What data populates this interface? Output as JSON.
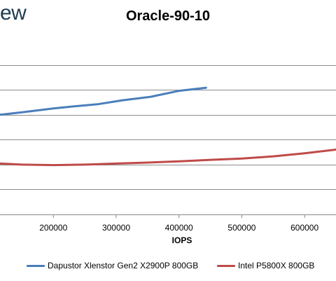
{
  "watermark": "ew",
  "chart_data": {
    "type": "line",
    "title": "Oracle-90-10",
    "xlabel": "IOPS",
    "ylabel": "",
    "x_ticks": [
      200000,
      300000,
      400000,
      500000,
      600000
    ],
    "xlim": [
      115000,
      650000
    ],
    "ylim": [
      0,
      7
    ],
    "grid": true,
    "legend_position": "bottom",
    "series": [
      {
        "name": "Dapustor Xlenstor Gen2 X2900P 800GB",
        "color": "#4a7ebb",
        "x": [
          115000,
          150000,
          200000,
          230000,
          270000,
          310000,
          355000,
          400000,
          443000
        ],
        "y": [
          4.0,
          4.1,
          4.25,
          4.33,
          4.42,
          4.58,
          4.72,
          4.96,
          5.08
        ]
      },
      {
        "name": "Intel P5800X 800GB",
        "color": "#be4b48",
        "x": [
          115000,
          150000,
          200000,
          250000,
          300000,
          350000,
          400000,
          450000,
          500000,
          550000,
          600000,
          650000
        ],
        "y": [
          2.04,
          2.0,
          1.98,
          2.0,
          2.04,
          2.08,
          2.13,
          2.19,
          2.24,
          2.33,
          2.45,
          2.6
        ]
      }
    ]
  }
}
